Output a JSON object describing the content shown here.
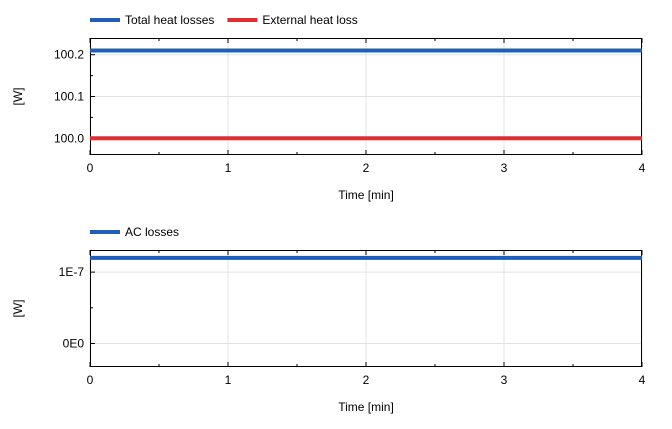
{
  "charts": [
    {
      "type": "line",
      "legend_position": "top-left",
      "grid": true,
      "xlabel": "Time [min]",
      "ylabel": "[W]",
      "xlim": [
        0,
        4
      ],
      "ylim": [
        99.96,
        100.24
      ],
      "x_ticks": [
        {
          "value": 0,
          "label": "0"
        },
        {
          "value": 1,
          "label": "1"
        },
        {
          "value": 2,
          "label": "2"
        },
        {
          "value": 3,
          "label": "3"
        },
        {
          "value": 4,
          "label": "4"
        }
      ],
      "y_ticks": [
        {
          "value": 100.0,
          "label": "100.0"
        },
        {
          "value": 100.1,
          "label": "100.1"
        },
        {
          "value": 100.2,
          "label": "100.2"
        }
      ],
      "series": [
        {
          "name": "Total heat losses",
          "color": "#1f5fba",
          "x": [
            0,
            4
          ],
          "y": [
            100.21,
            100.21
          ]
        },
        {
          "name": "External heat loss",
          "color": "#e32d2d",
          "x": [
            0,
            4
          ],
          "y": [
            100.0,
            100.0
          ]
        }
      ]
    },
    {
      "type": "line",
      "legend_position": "top-left",
      "grid": true,
      "xlabel": "Time [min]",
      "ylabel": "[W]",
      "xlim": [
        0,
        4
      ],
      "ylim": [
        -3.3e-08,
        1.31e-07
      ],
      "x_ticks": [
        {
          "value": 0,
          "label": "0"
        },
        {
          "value": 1,
          "label": "1"
        },
        {
          "value": 2,
          "label": "2"
        },
        {
          "value": 3,
          "label": "3"
        },
        {
          "value": 4,
          "label": "4"
        }
      ],
      "y_ticks": [
        {
          "value": 0,
          "label": "0E0"
        },
        {
          "value": 1e-07,
          "label": "1E-7"
        }
      ],
      "series": [
        {
          "name": "AC losses",
          "color": "#1f5fba",
          "x": [
            0,
            4
          ],
          "y": [
            1.2e-07,
            1.2e-07
          ]
        }
      ]
    }
  ]
}
